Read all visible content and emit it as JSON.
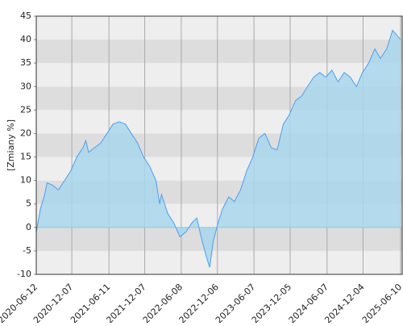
{
  "chart_data": {
    "type": "area",
    "y_label": "[Zmiany %]",
    "x": [
      "2020-06-12",
      "2020-07-03",
      "2020-07-24",
      "2020-08-05",
      "2020-09-01",
      "2020-10-01",
      "2020-11-01",
      "2020-12-01",
      "2021-01-01",
      "2021-02-01",
      "2021-02-15",
      "2021-03-01",
      "2021-04-01",
      "2021-05-01",
      "2021-06-01",
      "2021-07-01",
      "2021-08-01",
      "2021-09-01",
      "2021-10-01",
      "2021-11-01",
      "2021-12-01",
      "2022-01-01",
      "2022-02-01",
      "2022-02-20",
      "2022-03-01",
      "2022-04-01",
      "2022-05-01",
      "2022-06-01",
      "2022-07-01",
      "2022-08-01",
      "2022-08-25",
      "2022-09-15",
      "2022-10-10",
      "2022-10-28",
      "2022-11-15",
      "2022-12-06",
      "2023-01-01",
      "2023-02-01",
      "2023-03-01",
      "2023-04-01",
      "2023-05-01",
      "2023-06-01",
      "2023-07-01",
      "2023-08-01",
      "2023-09-01",
      "2023-10-01",
      "2023-11-01",
      "2023-12-01",
      "2024-01-01",
      "2024-02-01",
      "2024-03-01",
      "2024-04-01",
      "2024-05-01",
      "2024-06-01",
      "2024-07-01",
      "2024-08-01",
      "2024-09-01",
      "2024-10-01",
      "2024-11-01",
      "2024-12-01",
      "2025-01-01",
      "2025-02-01",
      "2025-03-01",
      "2025-04-01",
      "2025-05-01",
      "2025-06-10"
    ],
    "series": [
      {
        "name": "Zmiany",
        "color": "#4a9ff0",
        "fill": "#a9d6ec",
        "values": [
          -1,
          4,
          7,
          9.5,
          9,
          8,
          10,
          12,
          15,
          17,
          18.5,
          16,
          17,
          18,
          20,
          22,
          22.5,
          22,
          20,
          18,
          15,
          13,
          10,
          5,
          7,
          3,
          1,
          -2,
          -1,
          1,
          2,
          -2,
          -6,
          -8.5,
          -3,
          0.5,
          4,
          6.5,
          5.5,
          8,
          12,
          15,
          19,
          20,
          17,
          16.5,
          22,
          24,
          27,
          28,
          30,
          32,
          33,
          32,
          33.5,
          31,
          33,
          32,
          30,
          33,
          35,
          38,
          36,
          38,
          42,
          40
        ]
      }
    ],
    "xlim": [
      "2020-06-12",
      "2025-06-10"
    ],
    "xticks": [
      "2020-06-12",
      "2020-12-07",
      "2021-06-11",
      "2021-12-07",
      "2022-06-08",
      "2022-12-06",
      "2023-06-07",
      "2023-12-05",
      "2024-06-07",
      "2024-12-04",
      "2025-06-10"
    ],
    "ylim": [
      -10,
      45
    ],
    "yticks": [
      -10,
      -5,
      0,
      5,
      10,
      15,
      20,
      25,
      30,
      35,
      40,
      45
    ],
    "band_colors": [
      "#eeeeee",
      "#dddddd"
    ],
    "zero_line_color": "#7fd0d8"
  }
}
